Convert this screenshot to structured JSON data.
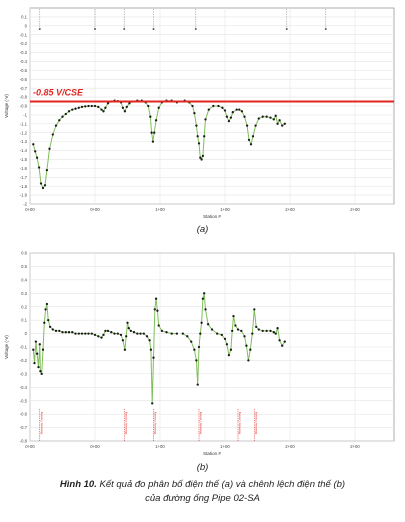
{
  "chart_data": [
    {
      "type": "line",
      "panel_label": "(a)",
      "ylabel": "Voltage (-V)",
      "xlabel": "Station #",
      "ylim": [
        -2.0,
        0.2
      ],
      "xlim": [
        0,
        560
      ],
      "y_ticks": [
        0.1,
        0,
        -0.1,
        -0.2,
        -0.3,
        -0.4,
        -0.5,
        -0.6,
        -0.7,
        -0.8,
        -0.9,
        -1,
        -1.1,
        -1.2,
        -1.3,
        -1.4,
        -1.5,
        -1.6,
        -1.7,
        -1.8,
        -1.9,
        -2
      ],
      "x_ticks": [
        {
          "x": 0,
          "label": "0+00"
        },
        {
          "x": 100,
          "label": "0+00"
        },
        {
          "x": 200,
          "label": "1+00"
        },
        {
          "x": 300,
          "label": "1+00"
        },
        {
          "x": 400,
          "label": "2+00"
        },
        {
          "x": 500,
          "label": "2+00"
        }
      ],
      "reference_line": {
        "y": -0.85,
        "label": "-0.85 V/CSE",
        "color": "#e0261f"
      },
      "top_markers_x": [
        15,
        100,
        145,
        190,
        255,
        395,
        455
      ],
      "series_color": "#7fbf5a",
      "marker_color": "#1a1a1a",
      "grid": true,
      "segments": [
        [
          [
            5,
            -1.33
          ],
          [
            8,
            -1.41
          ],
          [
            11,
            -1.48
          ],
          [
            14,
            -1.59
          ],
          [
            17,
            -1.77
          ],
          [
            20,
            -1.82
          ],
          [
            23,
            -1.79
          ],
          [
            26,
            -1.62
          ],
          [
            30,
            -1.38
          ],
          [
            35,
            -1.22
          ],
          [
            40,
            -1.12
          ],
          [
            45,
            -1.06
          ],
          [
            50,
            -1.02
          ],
          [
            55,
            -0.99
          ],
          [
            60,
            -0.96
          ],
          [
            65,
            -0.94
          ],
          [
            70,
            -0.93
          ],
          [
            75,
            -0.92
          ],
          [
            80,
            -0.91
          ],
          [
            85,
            -0.905
          ],
          [
            90,
            -0.9
          ],
          [
            95,
            -0.9
          ],
          [
            100,
            -0.9
          ],
          [
            105,
            -0.91
          ],
          [
            110,
            -0.94
          ],
          [
            113,
            -0.96
          ],
          [
            116,
            -0.92
          ],
          [
            120,
            -0.87
          ],
          [
            125,
            -0.85
          ],
          [
            130,
            -0.84
          ],
          [
            135,
            -0.845
          ],
          [
            140,
            -0.86
          ],
          [
            143,
            -0.92
          ],
          [
            146,
            -0.96
          ],
          [
            149,
            -0.91
          ],
          [
            153,
            -0.87
          ],
          [
            158,
            -0.85
          ],
          [
            165,
            -0.84
          ],
          [
            172,
            -0.84
          ],
          [
            178,
            -0.86
          ],
          [
            182,
            -0.9
          ],
          [
            185,
            -1.02
          ],
          [
            187,
            -1.2
          ],
          [
            189,
            -1.3
          ],
          [
            191,
            -1.2
          ],
          [
            194,
            -1.06
          ],
          [
            198,
            -0.92
          ],
          [
            203,
            -0.86
          ],
          [
            210,
            -0.84
          ],
          [
            218,
            -0.84
          ],
          [
            226,
            -0.86
          ]
        ],
        [
          [
            238,
            -0.84
          ],
          [
            245,
            -0.86
          ],
          [
            250,
            -0.9
          ],
          [
            253,
            -0.98
          ],
          [
            256,
            -1.12
          ],
          [
            258,
            -1.24
          ],
          [
            260,
            -1.32
          ],
          [
            262,
            -1.48
          ],
          [
            264,
            -1.5
          ],
          [
            266,
            -1.46
          ],
          [
            268,
            -1.24
          ],
          [
            270,
            -1.05
          ],
          [
            275,
            -0.94
          ],
          [
            282,
            -0.9
          ],
          [
            290,
            -0.9
          ],
          [
            296,
            -0.92
          ],
          [
            300,
            -0.95
          ],
          [
            303,
            -1.02
          ],
          [
            306,
            -1.07
          ],
          [
            309,
            -1.03
          ],
          [
            312,
            -0.97
          ],
          [
            318,
            -0.94
          ],
          [
            322,
            -0.94
          ],
          [
            326,
            -0.96
          ],
          [
            330,
            -1.02
          ],
          [
            334,
            -1.12
          ],
          [
            337,
            -1.28
          ],
          [
            340,
            -1.33
          ],
          [
            343,
            -1.24
          ],
          [
            347,
            -1.12
          ],
          [
            352,
            -1.04
          ],
          [
            358,
            -1.02
          ],
          [
            364,
            -1.02
          ],
          [
            370,
            -1.03
          ],
          [
            375,
            -1.05
          ],
          [
            378,
            -1.01
          ],
          [
            381,
            -1.1
          ],
          [
            384,
            -1.06
          ],
          [
            388,
            -1.12
          ],
          [
            392,
            -1.1
          ]
        ]
      ]
    },
    {
      "type": "line",
      "panel_label": "(b)",
      "ylabel": "Voltage (-V)",
      "xlabel": "Station #",
      "ylim": [
        -0.8,
        0.6
      ],
      "xlim": [
        0,
        560
      ],
      "y_ticks": [
        0.6,
        0.5,
        0.4,
        0.3,
        0.2,
        0.1,
        0,
        -0.1,
        -0.2,
        -0.3,
        -0.4,
        -0.5,
        -0.6,
        -0.7,
        -0.8
      ],
      "x_ticks": [
        {
          "x": 0,
          "label": "0+00"
        },
        {
          "x": 100,
          "label": "0+00"
        },
        {
          "x": 200,
          "label": "1+00"
        },
        {
          "x": 300,
          "label": "1+00"
        },
        {
          "x": 400,
          "label": "2+00"
        },
        {
          "x": 500,
          "label": "2+00"
        }
      ],
      "bottom_marker_text": "Waterway Crossing",
      "bottom_markers_x": [
        15,
        145,
        190,
        260,
        320,
        345
      ],
      "bottom_marker_color": "#e0261f",
      "series_color": "#7fbf5a",
      "marker_color": "#1a1a1a",
      "grid": true,
      "segments": [
        [
          [
            5,
            -0.12
          ],
          [
            7,
            -0.22
          ],
          [
            9,
            -0.06
          ],
          [
            11,
            -0.15
          ],
          [
            13,
            -0.25
          ],
          [
            15,
            -0.08
          ],
          [
            16,
            -0.28
          ],
          [
            18,
            -0.3
          ],
          [
            20,
            -0.12
          ],
          [
            22,
            0.08
          ],
          [
            24,
            0.18
          ],
          [
            26,
            0.22
          ],
          [
            28,
            0.1
          ],
          [
            31,
            0.05
          ],
          [
            35,
            0.03
          ],
          [
            40,
            0.02
          ],
          [
            45,
            0.02
          ],
          [
            50,
            0.01
          ],
          [
            55,
            0.01
          ],
          [
            60,
            0.01
          ],
          [
            65,
            0.01
          ],
          [
            70,
            0.0
          ],
          [
            75,
            0.0
          ],
          [
            80,
            0.0
          ],
          [
            85,
            0.0
          ],
          [
            90,
            0.0
          ],
          [
            95,
            0.0
          ],
          [
            100,
            -0.01
          ],
          [
            105,
            -0.02
          ],
          [
            110,
            -0.03
          ],
          [
            113,
            -0.01
          ],
          [
            116,
            0.02
          ],
          [
            120,
            0.02
          ],
          [
            125,
            0.01
          ],
          [
            130,
            0.0
          ],
          [
            135,
            0.0
          ],
          [
            140,
            -0.01
          ],
          [
            143,
            -0.05
          ],
          [
            146,
            -0.12
          ],
          [
            148,
            -0.02
          ],
          [
            150,
            0.08
          ],
          [
            152,
            0.04
          ],
          [
            155,
            0.02
          ],
          [
            160,
            0.01
          ],
          [
            165,
            0.0
          ],
          [
            170,
            0.0
          ],
          [
            175,
            0.0
          ],
          [
            180,
            -0.02
          ],
          [
            184,
            -0.05
          ],
          [
            186,
            -0.12
          ],
          [
            188,
            -0.52
          ],
          [
            190,
            -0.18
          ],
          [
            192,
            0.18
          ],
          [
            194,
            0.26
          ],
          [
            196,
            0.17
          ],
          [
            198,
            0.06
          ],
          [
            203,
            0.02
          ],
          [
            210,
            0.01
          ],
          [
            218,
            0.0
          ],
          [
            226,
            0.0
          ]
        ],
        [
          [
            235,
            0.0
          ],
          [
            242,
            -0.02
          ],
          [
            248,
            -0.06
          ],
          [
            253,
            -0.12
          ],
          [
            256,
            -0.2
          ],
          [
            258,
            -0.38
          ],
          [
            260,
            -0.1
          ],
          [
            262,
            0.0
          ],
          [
            264,
            0.08
          ],
          [
            266,
            0.26
          ],
          [
            268,
            0.3
          ],
          [
            270,
            0.18
          ],
          [
            274,
            0.07
          ],
          [
            280,
            0.03
          ],
          [
            288,
            0.0
          ],
          [
            295,
            -0.01
          ],
          [
            300,
            -0.04
          ],
          [
            303,
            -0.08
          ],
          [
            306,
            -0.16
          ],
          [
            309,
            -0.12
          ],
          [
            311,
            0.02
          ],
          [
            313,
            0.13
          ],
          [
            316,
            0.06
          ],
          [
            320,
            0.03
          ],
          [
            325,
            0.02
          ],
          [
            330,
            -0.02
          ],
          [
            333,
            -0.09
          ],
          [
            336,
            -0.2
          ],
          [
            339,
            -0.12
          ],
          [
            342,
            0.0
          ],
          [
            345,
            0.18
          ],
          [
            348,
            0.05
          ],
          [
            352,
            0.03
          ],
          [
            358,
            0.02
          ],
          [
            364,
            0.02
          ],
          [
            370,
            0.02
          ],
          [
            375,
            0.01
          ],
          [
            378,
            0.0
          ],
          [
            381,
            0.04
          ],
          [
            384,
            -0.05
          ],
          [
            388,
            -0.09
          ],
          [
            392,
            -0.06
          ]
        ]
      ]
    }
  ],
  "caption": {
    "figure_label": "Hình 10.",
    "text_line1": " Kết quả đo phân bố điện thế (a) và chênh lệch điện thế (b)",
    "text_line2": "của đường ống Pipe 02-SA"
  }
}
